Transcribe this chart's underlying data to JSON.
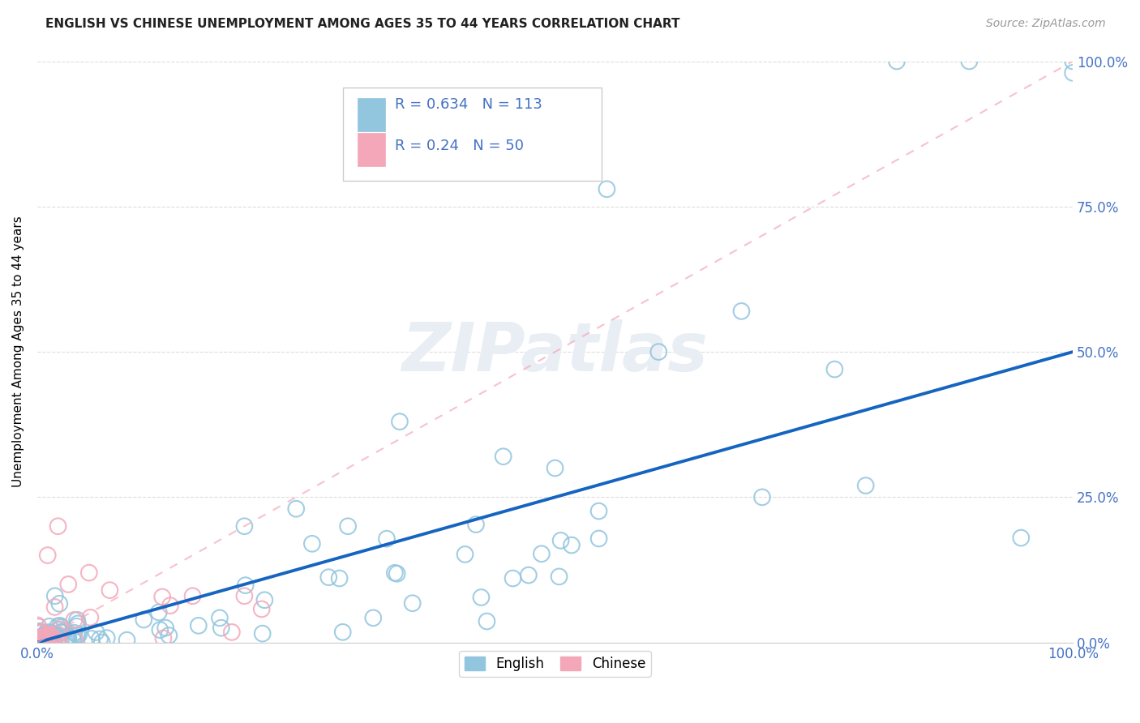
{
  "title": "ENGLISH VS CHINESE UNEMPLOYMENT AMONG AGES 35 TO 44 YEARS CORRELATION CHART",
  "source": "Source: ZipAtlas.com",
  "ylabel": "Unemployment Among Ages 35 to 44 years",
  "english_R": 0.634,
  "english_N": 113,
  "chinese_R": 0.24,
  "chinese_N": 50,
  "english_color": "#92C5DE",
  "chinese_color": "#F4A7B9",
  "regression_english_color": "#1565C0",
  "regression_chinese_color": "#F4A7B9",
  "background_color": "#FFFFFF",
  "title_color": "#222222",
  "source_color": "#999999",
  "axis_label_color": "#4472C4",
  "grid_color": "#DDDDDD",
  "watermark_color": "#E8EEF4",
  "xlim": [
    0,
    100
  ],
  "ylim": [
    0,
    100
  ],
  "yticks": [
    0,
    25,
    50,
    75,
    100
  ],
  "ytick_labels": [
    "0.0%",
    "25.0%",
    "50.0%",
    "75.0%",
    "100.0%"
  ],
  "xtick_labels": [
    "0.0%",
    "100.0%"
  ],
  "eng_line_x0": 0,
  "eng_line_y0": 0,
  "eng_line_x1": 100,
  "eng_line_y1": 50,
  "chi_line_x0": 0,
  "chi_line_y0": 0,
  "chi_line_x1": 100,
  "chi_line_y1": 100
}
